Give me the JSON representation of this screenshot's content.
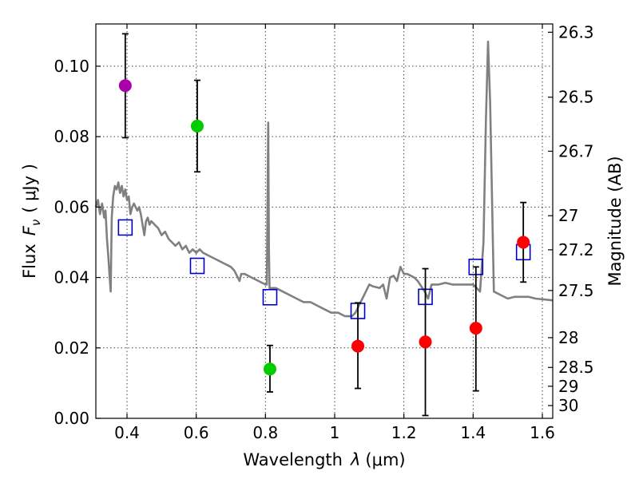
{
  "chart_data": {
    "type": "scatter",
    "xlabel_prefix": "Wavelength",
    "xlabel_symbol": "λ",
    "xlabel_unit": "(μm)",
    "ylabel_prefix": "Flux",
    "ylabel_symbol": "F",
    "ylabel_subscript": "ν",
    "ylabel_unit": "( μJy )",
    "y2label": "Magnitude (AB)",
    "xlim": [
      0.31,
      1.63
    ],
    "ylim": [
      0.0,
      0.112
    ],
    "grid": true,
    "xticks": [
      0.4,
      0.6,
      0.8,
      1.0,
      1.2,
      1.4,
      1.6
    ],
    "xtick_labels": [
      "0.4",
      "0.6",
      "0.8",
      "1",
      "1.2",
      "1.4",
      "1.6"
    ],
    "yticks": [
      0.0,
      0.02,
      0.04,
      0.06,
      0.08,
      0.1
    ],
    "ytick_labels": [
      "0.00",
      "0.02",
      "0.04",
      "0.06",
      "0.08",
      "0.10"
    ],
    "y2ticks": [
      {
        "mag": 26.3,
        "label": "26.3"
      },
      {
        "mag": 26.5,
        "label": "26.5"
      },
      {
        "mag": 26.7,
        "label": "26.7"
      },
      {
        "mag": 27.0,
        "label": "27"
      },
      {
        "mag": 27.2,
        "label": "27.2"
      },
      {
        "mag": 27.5,
        "label": "27.5"
      },
      {
        "mag": 28.0,
        "label": "28"
      },
      {
        "mag": 28.5,
        "label": "28.5"
      },
      {
        "mag": 29.0,
        "label": "29"
      },
      {
        "mag": 30.0,
        "label": "30"
      }
    ],
    "observed_points": [
      {
        "x": 0.395,
        "y": 0.0945,
        "yerr_low": 0.0797,
        "yerr_high": 0.1092,
        "color": "#aa00aa"
      },
      {
        "x": 0.603,
        "y": 0.083,
        "yerr_low": 0.07,
        "yerr_high": 0.096,
        "color": "#00cc00"
      },
      {
        "x": 0.813,
        "y": 0.014,
        "yerr_low": 0.0075,
        "yerr_high": 0.0207,
        "color": "#00cc00"
      },
      {
        "x": 1.067,
        "y": 0.0205,
        "yerr_low": 0.0085,
        "yerr_high": 0.0328,
        "color": "#ff0000"
      },
      {
        "x": 1.262,
        "y": 0.0217,
        "yerr_low": 0.0008,
        "yerr_high": 0.0425,
        "color": "#ff0000"
      },
      {
        "x": 1.408,
        "y": 0.0256,
        "yerr_low": 0.0078,
        "yerr_high": 0.043,
        "color": "#ff0000"
      },
      {
        "x": 1.545,
        "y": 0.05,
        "yerr_low": 0.0387,
        "yerr_high": 0.0613,
        "color": "#ff0000"
      }
    ],
    "model_points": [
      {
        "x": 0.395,
        "y": 0.0542
      },
      {
        "x": 0.603,
        "y": 0.0433
      },
      {
        "x": 0.813,
        "y": 0.0344
      },
      {
        "x": 1.067,
        "y": 0.0305
      },
      {
        "x": 1.262,
        "y": 0.0345
      },
      {
        "x": 1.408,
        "y": 0.043
      },
      {
        "x": 1.545,
        "y": 0.0472
      }
    ],
    "model_points_color": "#0000cc",
    "sed_color": "#808080",
    "sed_curve": [
      [
        0.31,
        0.06
      ],
      [
        0.316,
        0.062
      ],
      [
        0.322,
        0.058
      ],
      [
        0.328,
        0.061
      ],
      [
        0.334,
        0.057
      ],
      [
        0.338,
        0.059
      ],
      [
        0.342,
        0.051
      ],
      [
        0.346,
        0.046
      ],
      [
        0.35,
        0.04
      ],
      [
        0.353,
        0.036
      ],
      [
        0.356,
        0.057
      ],
      [
        0.36,
        0.063
      ],
      [
        0.365,
        0.066
      ],
      [
        0.37,
        0.065
      ],
      [
        0.375,
        0.067
      ],
      [
        0.38,
        0.064
      ],
      [
        0.385,
        0.066
      ],
      [
        0.39,
        0.063
      ],
      [
        0.395,
        0.065
      ],
      [
        0.4,
        0.062
      ],
      [
        0.405,
        0.063
      ],
      [
        0.41,
        0.058
      ],
      [
        0.415,
        0.06
      ],
      [
        0.42,
        0.061
      ],
      [
        0.425,
        0.06
      ],
      [
        0.43,
        0.059
      ],
      [
        0.435,
        0.06
      ],
      [
        0.44,
        0.058
      ],
      [
        0.445,
        0.055
      ],
      [
        0.45,
        0.052
      ],
      [
        0.455,
        0.056
      ],
      [
        0.46,
        0.057
      ],
      [
        0.465,
        0.055
      ],
      [
        0.47,
        0.056
      ],
      [
        0.48,
        0.055
      ],
      [
        0.49,
        0.054
      ],
      [
        0.5,
        0.052
      ],
      [
        0.51,
        0.053
      ],
      [
        0.52,
        0.051
      ],
      [
        0.53,
        0.05
      ],
      [
        0.54,
        0.049
      ],
      [
        0.55,
        0.05
      ],
      [
        0.56,
        0.048
      ],
      [
        0.57,
        0.049
      ],
      [
        0.58,
        0.047
      ],
      [
        0.59,
        0.048
      ],
      [
        0.6,
        0.047
      ],
      [
        0.61,
        0.048
      ],
      [
        0.62,
        0.047
      ],
      [
        0.64,
        0.046
      ],
      [
        0.66,
        0.045
      ],
      [
        0.68,
        0.044
      ],
      [
        0.7,
        0.043
      ],
      [
        0.71,
        0.042
      ],
      [
        0.72,
        0.04
      ],
      [
        0.725,
        0.039
      ],
      [
        0.73,
        0.041
      ],
      [
        0.74,
        0.041
      ],
      [
        0.76,
        0.04
      ],
      [
        0.78,
        0.039
      ],
      [
        0.8,
        0.038
      ],
      [
        0.804,
        0.038
      ],
      [
        0.806,
        0.06
      ],
      [
        0.808,
        0.084
      ],
      [
        0.81,
        0.048
      ],
      [
        0.812,
        0.037
      ],
      [
        0.83,
        0.037
      ],
      [
        0.85,
        0.036
      ],
      [
        0.87,
        0.035
      ],
      [
        0.89,
        0.034
      ],
      [
        0.91,
        0.033
      ],
      [
        0.93,
        0.033
      ],
      [
        0.95,
        0.032
      ],
      [
        0.97,
        0.031
      ],
      [
        0.99,
        0.03
      ],
      [
        1.01,
        0.03
      ],
      [
        1.03,
        0.029
      ],
      [
        1.05,
        0.029
      ],
      [
        1.06,
        0.03
      ],
      [
        1.08,
        0.034
      ],
      [
        1.1,
        0.038
      ],
      [
        1.11,
        0.0375
      ],
      [
        1.13,
        0.037
      ],
      [
        1.14,
        0.038
      ],
      [
        1.15,
        0.034
      ],
      [
        1.16,
        0.04
      ],
      [
        1.17,
        0.0405
      ],
      [
        1.18,
        0.039
      ],
      [
        1.19,
        0.043
      ],
      [
        1.2,
        0.041
      ],
      [
        1.21,
        0.041
      ],
      [
        1.23,
        0.04
      ],
      [
        1.24,
        0.039
      ],
      [
        1.26,
        0.036
      ],
      [
        1.27,
        0.034
      ],
      [
        1.28,
        0.038
      ],
      [
        1.3,
        0.038
      ],
      [
        1.32,
        0.0385
      ],
      [
        1.34,
        0.038
      ],
      [
        1.36,
        0.038
      ],
      [
        1.38,
        0.038
      ],
      [
        1.4,
        0.038
      ],
      [
        1.41,
        0.037
      ],
      [
        1.42,
        0.036
      ],
      [
        1.43,
        0.05
      ],
      [
        1.437,
        0.085
      ],
      [
        1.443,
        0.107
      ],
      [
        1.449,
        0.09
      ],
      [
        1.455,
        0.06
      ],
      [
        1.46,
        0.036
      ],
      [
        1.48,
        0.035
      ],
      [
        1.5,
        0.034
      ],
      [
        1.52,
        0.0345
      ],
      [
        1.56,
        0.0345
      ],
      [
        1.58,
        0.034
      ],
      [
        1.63,
        0.0335
      ]
    ]
  }
}
